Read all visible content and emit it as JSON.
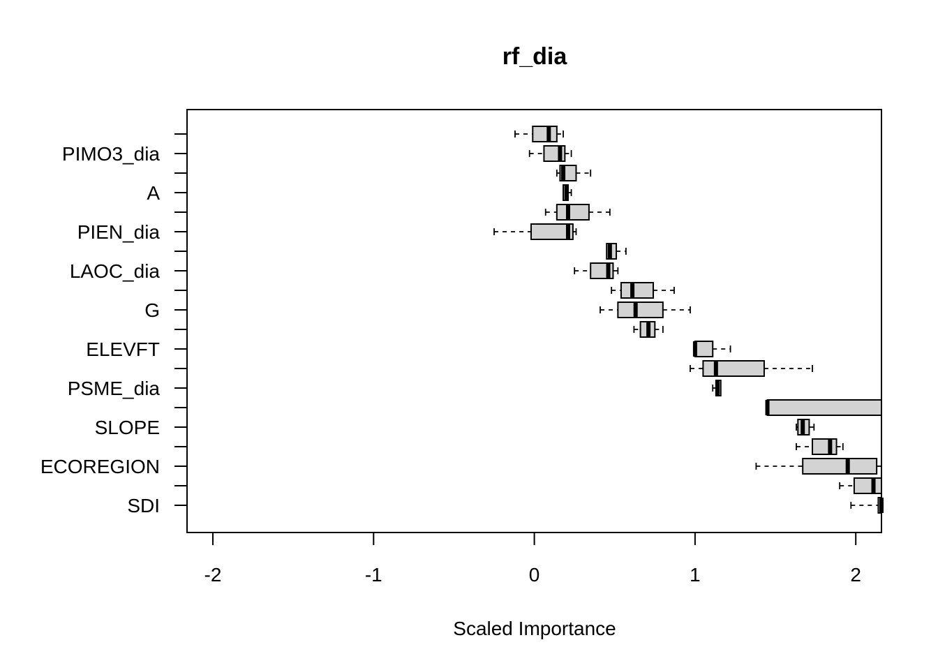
{
  "chart_data": {
    "type": "boxplot",
    "title": "rf_dia",
    "xlabel": "Scaled Importance",
    "ylabel": "",
    "xlim": [
      -2.16,
      2.16
    ],
    "xticks": [
      -2,
      -1,
      0,
      1,
      2
    ],
    "xtick_labels": [
      "-2",
      "-1",
      "0",
      "1",
      "2"
    ],
    "orientation": "horizontal",
    "grid": false,
    "categories": [
      "",
      "PIMO3_dia",
      "",
      "A",
      "",
      "PIEN_dia",
      "",
      "LAOC_dia",
      "",
      "G",
      "",
      "ELEVFT",
      "",
      "PSME_dia",
      "",
      "SLOPE",
      "",
      "ECOREGION",
      "",
      "SDI"
    ],
    "boxes": [
      {
        "whisker_low": -0.12,
        "q1": -0.01,
        "median": 0.09,
        "q3": 0.14,
        "whisker_high": 0.18
      },
      {
        "whisker_low": -0.03,
        "q1": 0.06,
        "median": 0.16,
        "q3": 0.19,
        "whisker_high": 0.23
      },
      {
        "whisker_low": 0.14,
        "q1": 0.16,
        "median": 0.18,
        "q3": 0.26,
        "whisker_high": 0.35
      },
      {
        "whisker_low": 0.18,
        "q1": 0.18,
        "median": 0.2,
        "q3": 0.21,
        "whisker_high": 0.23
      },
      {
        "whisker_low": 0.07,
        "q1": 0.14,
        "median": 0.21,
        "q3": 0.34,
        "whisker_high": 0.47
      },
      {
        "whisker_low": -0.25,
        "q1": -0.02,
        "median": 0.21,
        "q3": 0.24,
        "whisker_high": 0.26
      },
      {
        "whisker_low": 0.45,
        "q1": 0.45,
        "median": 0.47,
        "q3": 0.51,
        "whisker_high": 0.57
      },
      {
        "whisker_low": 0.25,
        "q1": 0.35,
        "median": 0.46,
        "q3": 0.49,
        "whisker_high": 0.52
      },
      {
        "whisker_low": 0.48,
        "q1": 0.54,
        "median": 0.61,
        "q3": 0.74,
        "whisker_high": 0.87
      },
      {
        "whisker_low": 0.41,
        "q1": 0.52,
        "median": 0.63,
        "q3": 0.8,
        "whisker_high": 0.97
      },
      {
        "whisker_low": 0.62,
        "q1": 0.66,
        "median": 0.71,
        "q3": 0.75,
        "whisker_high": 0.8
      },
      {
        "whisker_low": 1.0,
        "q1": 1.0,
        "median": 1.0,
        "q3": 1.11,
        "whisker_high": 1.22
      },
      {
        "whisker_low": 0.97,
        "q1": 1.05,
        "median": 1.13,
        "q3": 1.43,
        "whisker_high": 1.73
      },
      {
        "whisker_low": 1.11,
        "q1": 1.13,
        "median": 1.14,
        "q3": 1.16,
        "whisker_high": 1.16
      },
      {
        "whisker_low": 1.45,
        "q1": 1.45,
        "median": 1.45,
        "q3": 2.16,
        "whisker_high": 2.16
      },
      {
        "whisker_low": 1.63,
        "q1": 1.64,
        "median": 1.67,
        "q3": 1.71,
        "whisker_high": 1.74
      },
      {
        "whisker_low": 1.63,
        "q1": 1.73,
        "median": 1.84,
        "q3": 1.88,
        "whisker_high": 1.92
      },
      {
        "whisker_low": 1.38,
        "q1": 1.67,
        "median": 1.95,
        "q3": 2.13,
        "whisker_high": 2.16
      },
      {
        "whisker_low": 1.9,
        "q1": 1.99,
        "median": 2.11,
        "q3": 2.16,
        "whisker_high": 2.16
      },
      {
        "whisker_low": 1.97,
        "q1": 2.14,
        "median": 2.16,
        "q3": 2.16,
        "whisker_high": 2.16
      }
    ]
  }
}
